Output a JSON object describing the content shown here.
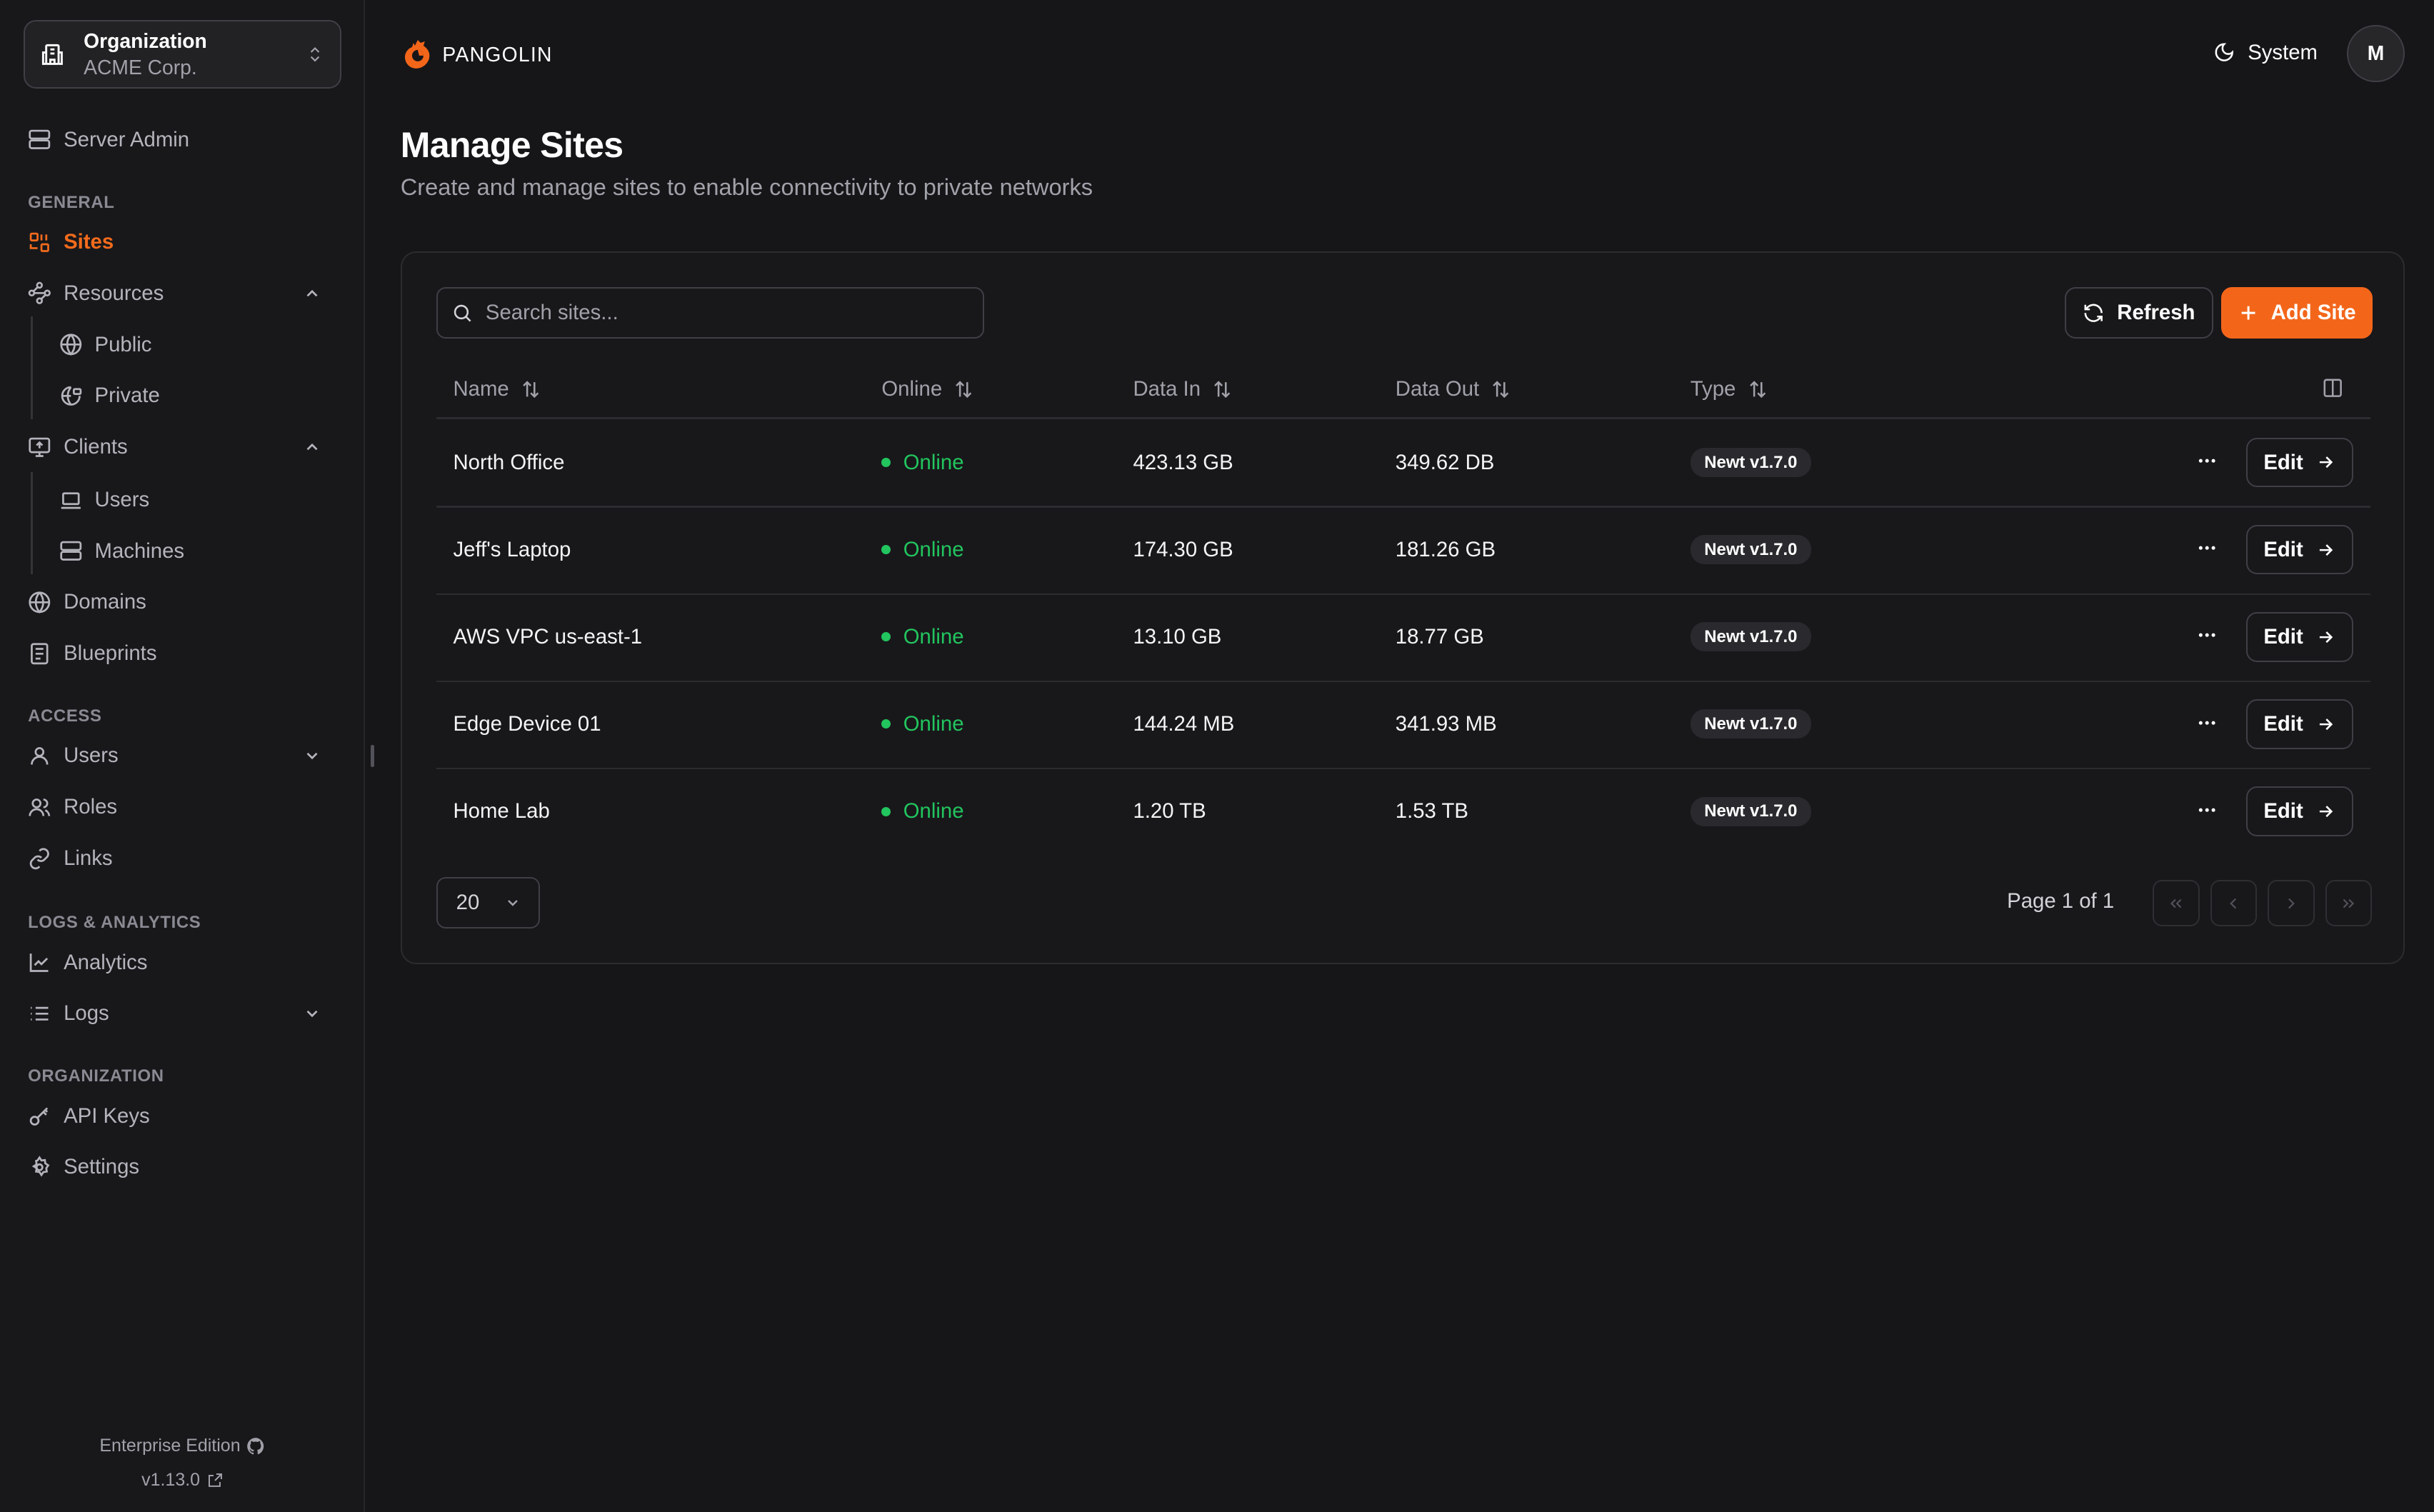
{
  "org": {
    "title": "Organization",
    "name": "ACME Corp."
  },
  "sidebar": {
    "server_admin": "Server Admin",
    "sections": {
      "general": "GENERAL",
      "access": "ACCESS",
      "logs": "LOGS & ANALYTICS",
      "organization": "ORGANIZATION"
    },
    "items": {
      "sites": "Sites",
      "resources": "Resources",
      "public": "Public",
      "private": "Private",
      "clients": "Clients",
      "users": "Users",
      "machines": "Machines",
      "domains": "Domains",
      "blueprints": "Blueprints",
      "access_users": "Users",
      "roles": "Roles",
      "links": "Links",
      "analytics": "Analytics",
      "logs": "Logs",
      "api_keys": "API Keys",
      "settings": "Settings"
    },
    "active": "Sites",
    "footer": {
      "edition": "Enterprise Edition",
      "version": "v1.13.0"
    }
  },
  "header": {
    "brand": "PANGOLIN",
    "theme": "System",
    "avatar": "M"
  },
  "page": {
    "title": "Manage Sites",
    "subtitle": "Create and manage sites to enable connectivity to private networks"
  },
  "toolbar": {
    "search_placeholder": "Search sites...",
    "refresh": "Refresh",
    "add": "Add Site"
  },
  "table": {
    "columns": [
      "Name",
      "Online",
      "Data In",
      "Data Out",
      "Type"
    ],
    "rows": [
      {
        "name": "North Office",
        "online": "Online",
        "data_in": "423.13 GB",
        "data_out": "349.62 DB",
        "type": "Newt v1.7.0",
        "edit": "Edit"
      },
      {
        "name": "Jeff's Laptop",
        "online": "Online",
        "data_in": "174.30 GB",
        "data_out": "181.26 GB",
        "type": "Newt v1.7.0",
        "edit": "Edit"
      },
      {
        "name": "AWS VPC us-east-1",
        "online": "Online",
        "data_in": "13.10 GB",
        "data_out": "18.77 GB",
        "type": "Newt v1.7.0",
        "edit": "Edit"
      },
      {
        "name": "Edge Device 01",
        "online": "Online",
        "data_in": "144.24 MB",
        "data_out": "341.93 MB",
        "type": "Newt v1.7.0",
        "edit": "Edit"
      },
      {
        "name": "Home Lab",
        "online": "Online",
        "data_in": "1.20 TB",
        "data_out": "1.53 TB",
        "type": "Newt v1.7.0",
        "edit": "Edit"
      }
    ]
  },
  "pagination": {
    "page_size": "20",
    "info": "Page 1 of 1"
  },
  "colors": {
    "accent": "#f3661a",
    "online": "#22c55e",
    "background": "#161618"
  }
}
